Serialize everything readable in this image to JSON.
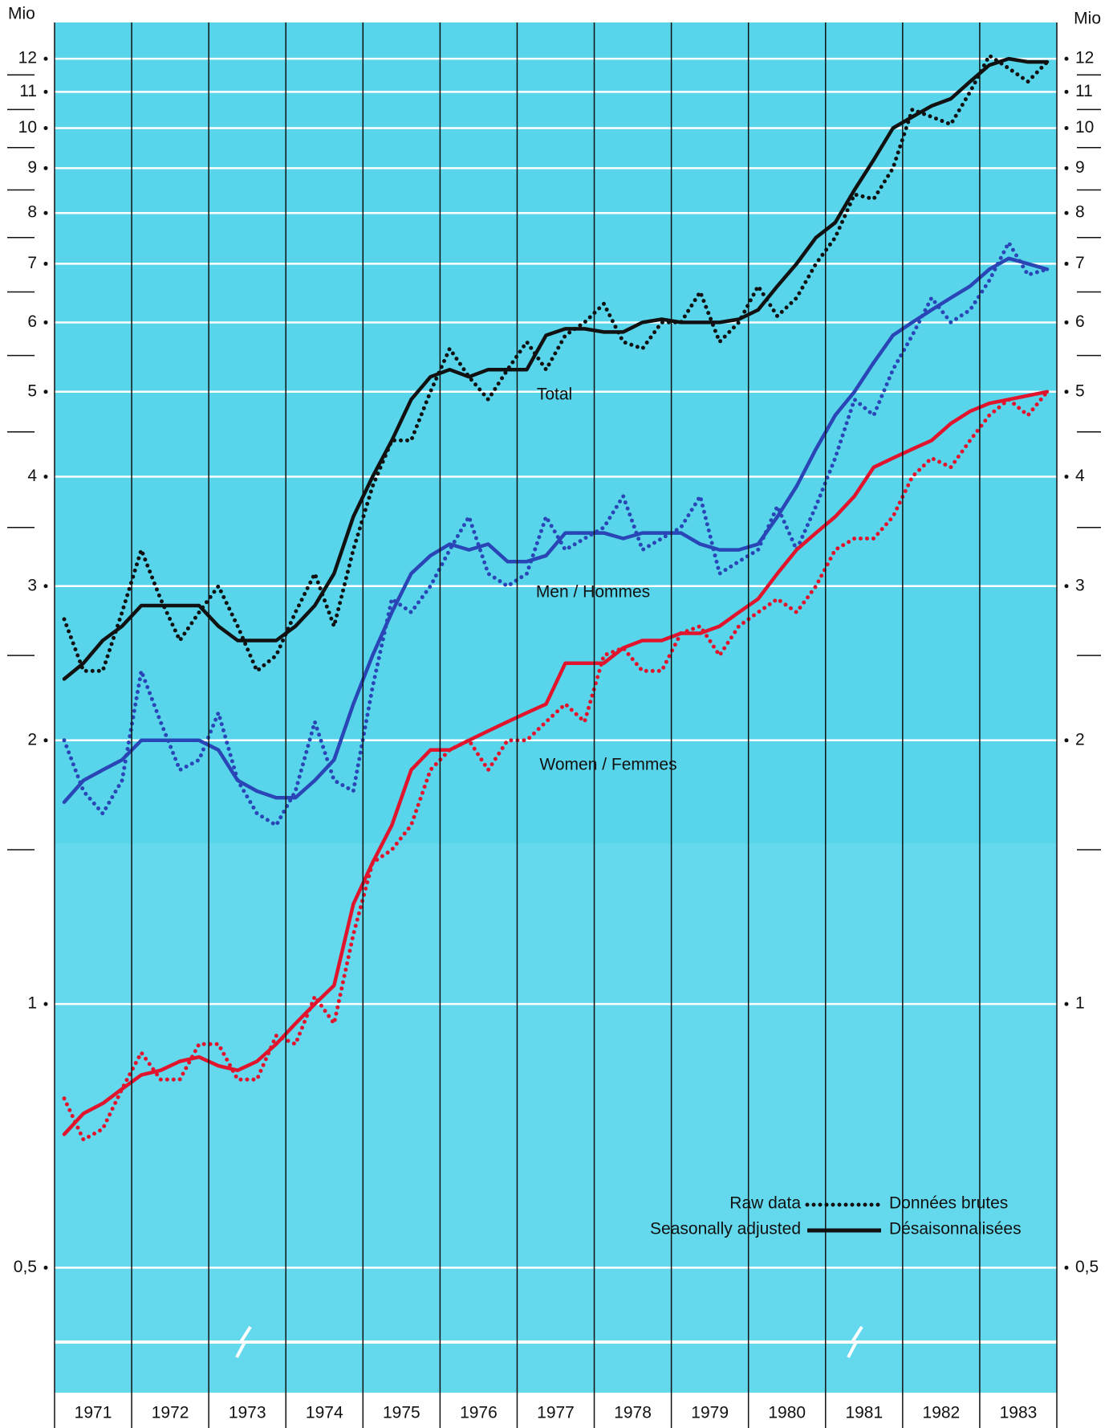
{
  "chart_data": {
    "type": "line",
    "unit_label": "Mio",
    "log_scale": true,
    "grid": true,
    "categories": [
      "1971",
      "1972",
      "1973",
      "1974",
      "1975",
      "1976",
      "1977",
      "1978",
      "1979",
      "1980",
      "1981",
      "1982",
      "1983"
    ],
    "xlim": [
      1971,
      1984
    ],
    "x": [
      1971.125,
      1971.375,
      1971.625,
      1971.875,
      1972.125,
      1972.375,
      1972.625,
      1972.875,
      1973.125,
      1973.375,
      1973.625,
      1973.875,
      1974.125,
      1974.375,
      1974.625,
      1974.875,
      1975.125,
      1975.375,
      1975.625,
      1975.875,
      1976.125,
      1976.375,
      1976.625,
      1976.875,
      1977.125,
      1977.375,
      1977.625,
      1977.875,
      1978.125,
      1978.375,
      1978.625,
      1978.875,
      1979.125,
      1979.375,
      1979.625,
      1979.875,
      1980.125,
      1980.375,
      1980.625,
      1980.875,
      1981.125,
      1981.375,
      1981.625,
      1981.875,
      1982.125,
      1982.375,
      1982.625,
      1982.875,
      1983.125,
      1983.375,
      1983.625,
      1983.875
    ],
    "ylim": [
      0.36,
      13.2
    ],
    "yticks": [
      {
        "value": 0.5,
        "label": "0,5"
      },
      1,
      2,
      3,
      4,
      5,
      6,
      7,
      8,
      9,
      10,
      11,
      12
    ],
    "minor_yticks": [
      1.5,
      2.5,
      3.5,
      4.5,
      5.5,
      6.5,
      7.5,
      8.5,
      9.5,
      10.5,
      11.5
    ],
    "legend": {
      "raw": [
        "Raw data",
        "Données brutes"
      ],
      "adjusted": [
        "Seasonally adjusted",
        "Désaisonnalisées"
      ]
    },
    "series": [
      {
        "name": "Total",
        "color": "#111111",
        "raw": [
          2.75,
          2.4,
          2.4,
          2.8,
          3.3,
          2.9,
          2.6,
          2.8,
          3.0,
          2.7,
          2.4,
          2.5,
          2.8,
          3.1,
          2.7,
          3.3,
          3.9,
          4.4,
          4.4,
          5.0,
          5.6,
          5.2,
          4.9,
          5.3,
          5.7,
          5.3,
          5.8,
          6.0,
          6.3,
          5.7,
          5.6,
          6.0,
          6.0,
          6.5,
          5.7,
          6.0,
          6.6,
          6.1,
          6.4,
          7.0,
          7.5,
          8.4,
          8.3,
          9.0,
          10.5,
          10.3,
          10.1,
          11.0,
          12.1,
          11.7,
          11.3,
          11.9
        ],
        "adjusted": [
          2.35,
          2.45,
          2.6,
          2.7,
          2.85,
          2.85,
          2.85,
          2.85,
          2.7,
          2.6,
          2.6,
          2.6,
          2.7,
          2.85,
          3.1,
          3.6,
          4.0,
          4.4,
          4.9,
          5.2,
          5.3,
          5.2,
          5.3,
          5.3,
          5.3,
          5.8,
          5.9,
          5.9,
          5.85,
          5.85,
          6.0,
          6.05,
          6.0,
          6.0,
          6.0,
          6.05,
          6.2,
          6.6,
          7.0,
          7.5,
          7.8,
          8.5,
          9.2,
          10.0,
          10.3,
          10.6,
          10.8,
          11.3,
          11.8,
          12.0,
          11.9,
          11.9
        ]
      },
      {
        "name": "Men / Hommes",
        "color": "#2a45b5",
        "raw": [
          2.0,
          1.75,
          1.65,
          1.8,
          2.4,
          2.1,
          1.85,
          1.9,
          2.15,
          1.8,
          1.65,
          1.6,
          1.75,
          2.1,
          1.8,
          1.75,
          2.3,
          2.9,
          2.8,
          3.0,
          3.3,
          3.6,
          3.1,
          3.0,
          3.1,
          3.6,
          3.3,
          3.4,
          3.5,
          3.8,
          3.3,
          3.4,
          3.5,
          3.8,
          3.1,
          3.2,
          3.3,
          3.7,
          3.3,
          3.7,
          4.2,
          4.9,
          4.7,
          5.3,
          5.8,
          6.4,
          6.0,
          6.2,
          6.7,
          7.4,
          6.8,
          6.9
        ],
        "adjusted": [
          1.7,
          1.8,
          1.85,
          1.9,
          2.0,
          2.0,
          2.0,
          2.0,
          1.95,
          1.8,
          1.75,
          1.72,
          1.72,
          1.8,
          1.9,
          2.2,
          2.5,
          2.8,
          3.1,
          3.25,
          3.35,
          3.3,
          3.35,
          3.2,
          3.2,
          3.25,
          3.45,
          3.45,
          3.45,
          3.4,
          3.45,
          3.45,
          3.45,
          3.35,
          3.3,
          3.3,
          3.35,
          3.6,
          3.9,
          4.3,
          4.7,
          5.0,
          5.4,
          5.8,
          6.0,
          6.2,
          6.4,
          6.6,
          6.9,
          7.1,
          7.0,
          6.9
        ]
      },
      {
        "name": "Women / Femmes",
        "color": "#e0142c",
        "raw": [
          0.78,
          0.7,
          0.72,
          0.8,
          0.88,
          0.82,
          0.82,
          0.9,
          0.9,
          0.82,
          0.82,
          0.92,
          0.9,
          1.02,
          0.95,
          1.2,
          1.45,
          1.5,
          1.6,
          1.85,
          1.95,
          2.0,
          1.85,
          2.0,
          2.0,
          2.1,
          2.2,
          2.1,
          2.5,
          2.55,
          2.4,
          2.4,
          2.65,
          2.7,
          2.5,
          2.7,
          2.8,
          2.9,
          2.8,
          3.0,
          3.3,
          3.4,
          3.4,
          3.6,
          4.0,
          4.2,
          4.1,
          4.4,
          4.7,
          4.9,
          4.7,
          5.0
        ],
        "adjusted": [
          0.71,
          0.75,
          0.77,
          0.8,
          0.83,
          0.84,
          0.86,
          0.87,
          0.85,
          0.84,
          0.86,
          0.9,
          0.95,
          1.0,
          1.05,
          1.3,
          1.45,
          1.6,
          1.85,
          1.95,
          1.95,
          2.0,
          2.05,
          2.1,
          2.15,
          2.2,
          2.45,
          2.45,
          2.45,
          2.55,
          2.6,
          2.6,
          2.65,
          2.65,
          2.7,
          2.8,
          2.9,
          3.1,
          3.3,
          3.45,
          3.6,
          3.8,
          4.1,
          4.2,
          4.3,
          4.4,
          4.6,
          4.75,
          4.85,
          4.9,
          4.95,
          5.0
        ]
      }
    ]
  }
}
